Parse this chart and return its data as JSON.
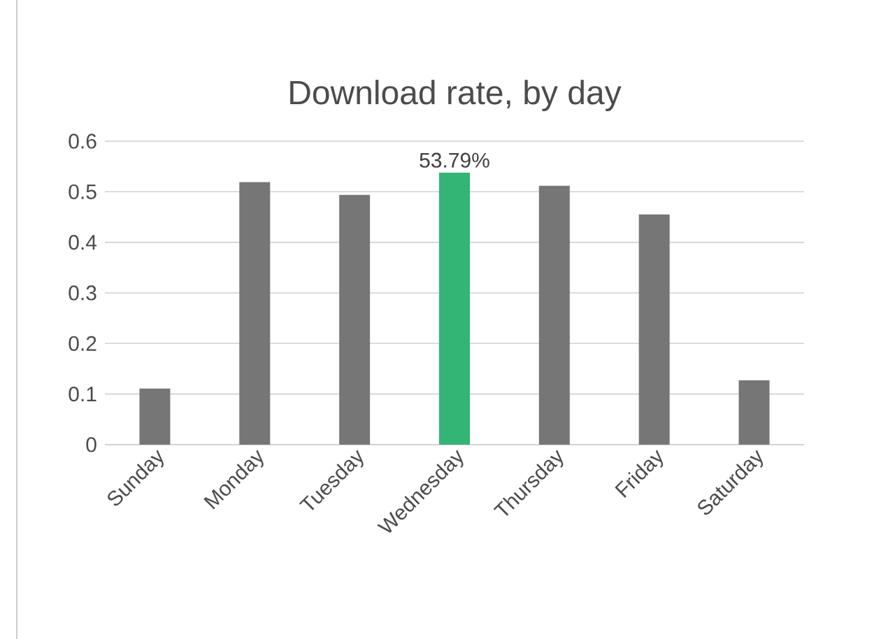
{
  "chart_data": {
    "type": "bar",
    "title": "Download rate, by day",
    "categories": [
      "Sunday",
      "Monday",
      "Tuesday",
      "Wednesday",
      "Thursday",
      "Friday",
      "Saturday"
    ],
    "values": [
      0.111,
      0.519,
      0.494,
      0.5379,
      0.512,
      0.455,
      0.127
    ],
    "colors": [
      "#767676",
      "#767676",
      "#767676",
      "#33b575",
      "#767676",
      "#767676",
      "#767676"
    ],
    "value_labels": [
      null,
      null,
      null,
      "53.79%",
      null,
      null,
      null
    ],
    "ylim": [
      0,
      0.6
    ],
    "yticks": [
      0,
      0.1,
      0.2,
      0.3,
      0.4,
      0.5,
      0.6
    ],
    "grid": "y"
  }
}
